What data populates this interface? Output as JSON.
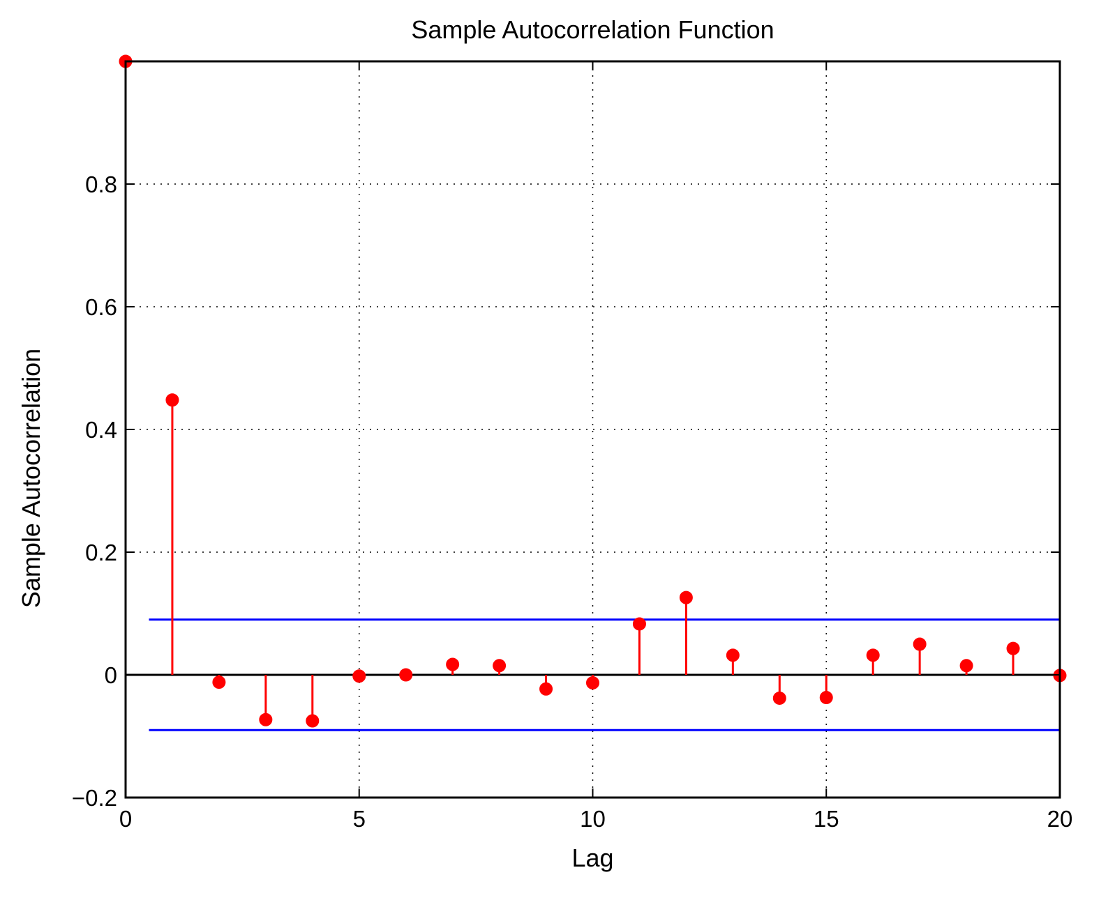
{
  "chart_data": {
    "type": "stem",
    "title": "Sample Autocorrelation Function",
    "xlabel": "Lag",
    "ylabel": "Sample Autocorrelation",
    "xlim": [
      0,
      20
    ],
    "ylim": [
      -0.2,
      1.0
    ],
    "grid": true,
    "x_ticks": [
      0,
      5,
      10,
      15,
      20
    ],
    "x_tick_labels": [
      "0",
      "5",
      "10",
      "15",
      "20"
    ],
    "y_ticks": [
      -0.2,
      0,
      0.2,
      0.4,
      0.6,
      0.8
    ],
    "y_tick_labels": [
      "−0.2",
      "0",
      "0.2",
      "0.4",
      "0.6",
      "0.8"
    ],
    "series": [
      {
        "x": [
          0,
          1,
          2,
          3,
          4,
          5,
          6,
          7,
          8,
          9,
          10,
          11,
          12,
          13,
          14,
          15,
          16,
          17,
          18,
          19,
          20
        ],
        "values": [
          1.0,
          0.448,
          -0.012,
          -0.073,
          -0.075,
          -0.002,
          0.0,
          0.017,
          0.015,
          -0.023,
          -0.013,
          0.083,
          0.126,
          0.032,
          -0.038,
          -0.037,
          0.032,
          0.05,
          0.015,
          0.043,
          -0.001
        ],
        "color": "#ff0000"
      }
    ],
    "confidence_bounds": {
      "upper": 0.09,
      "lower": -0.09,
      "x_start": 0.5,
      "x_end": 20,
      "color": "#0000ff"
    }
  }
}
